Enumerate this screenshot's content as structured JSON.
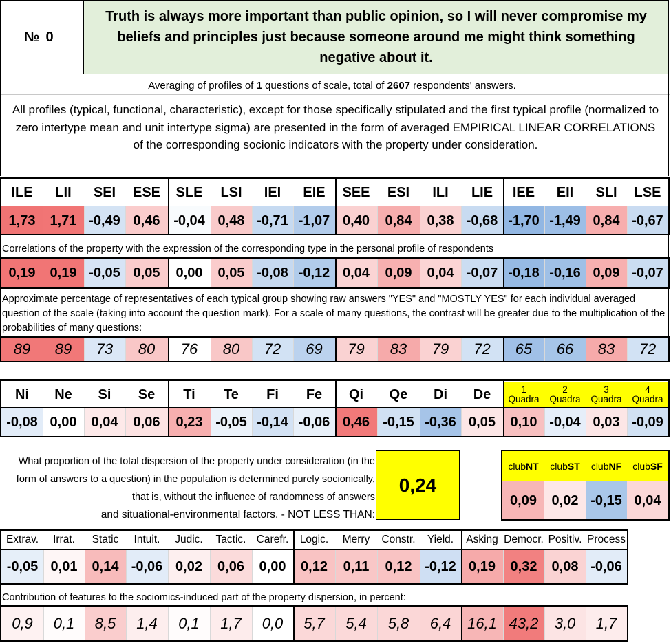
{
  "header": {
    "number_label": "№",
    "number_value": "0",
    "statement": "Truth is always more important than public opinion, so I will never compromise my beliefs and principles just because someone around me might think something negative about it."
  },
  "averaging": {
    "prefix": "Averaging of profiles of ",
    "questions": "1",
    "middle": " questions of scale, total of ",
    "respondents": "2607",
    "suffix": " respondents' answers."
  },
  "intro": "All profiles (typical, functional, characteristic), except for those specifically stipulated and the first typical profile (normalized to zero intertype mean and unit intertype sigma) are presented in the form of averaged EMPIRICAL LINEAR CORRELATIONS of the corresponding socionic indicators with the property under consideration.",
  "types": {
    "headers": [
      "ILE",
      "LII",
      "SEI",
      "ESE",
      "SLE",
      "LSI",
      "IEI",
      "EIE",
      "SEE",
      "ESI",
      "ILI",
      "LIE",
      "IEE",
      "EII",
      "SLI",
      "LSE"
    ],
    "normalized": [
      "1,73",
      "1,71",
      "-0,49",
      "0,46",
      "-0,04",
      "0,48",
      "-0,71",
      "-1,07",
      "0,40",
      "0,84",
      "0,38",
      "-0,68",
      "-1,70",
      "-1,49",
      "0,84",
      "-0,67"
    ],
    "correlations_note": "Correlations of the property with the expression of the corresponding type in the personal profile of respondents",
    "correlations": [
      "0,19",
      "0,19",
      "-0,05",
      "0,05",
      "0,00",
      "0,05",
      "-0,08",
      "-0,12",
      "0,04",
      "0,09",
      "0,04",
      "-0,07",
      "-0,18",
      "-0,16",
      "0,09",
      "-0,07"
    ],
    "percent_note": "Approximate percentage of representatives of each typical group showing raw answers \"YES\" and \"MOSTLY YES\" for each individual averaged question of the scale (taking into account the question mark). For a scale of many questions, the contrast will be greater due to the multiplication of the probabilities of many questions:",
    "percentages": [
      "89",
      "89",
      "73",
      "80",
      "76",
      "80",
      "72",
      "69",
      "79",
      "83",
      "79",
      "72",
      "65",
      "66",
      "83",
      "72"
    ]
  },
  "functions": {
    "headers": [
      "Ni",
      "Ne",
      "Si",
      "Se",
      "Ti",
      "Te",
      "Fi",
      "Fe",
      "Qi",
      "Qe",
      "Di",
      "De"
    ],
    "values": [
      "-0,08",
      "0,00",
      "0,04",
      "0,06",
      "0,23",
      "-0,05",
      "-0,14",
      "-0,06",
      "0,46",
      "-0,15",
      "-0,36",
      "0,05"
    ]
  },
  "quadras": {
    "numbers": [
      "1",
      "2",
      "3",
      "4"
    ],
    "label": "Quadra",
    "values": [
      "0,10",
      "-0,04",
      "0,03",
      "-0,09"
    ]
  },
  "dispersion": {
    "text": "What proportion of the total dispersion of the property under consideration (in the form of answers to a question) in the population is determined purely socionically, that is, without the influence of randomness of answers",
    "text_last": "and situational-environmental factors. - NOT LESS THAN:",
    "value": "0,24"
  },
  "clubs": {
    "prefix": "club",
    "names": [
      "NT",
      "ST",
      "NF",
      "SF"
    ],
    "values": [
      "0,09",
      "0,02",
      "-0,15",
      "0,04"
    ]
  },
  "traits": {
    "headers": [
      "Extrav.",
      "Irrat.",
      "Static",
      "Intuit.",
      "Judic.",
      "Tactic.",
      "Carefr.",
      "Logic.",
      "Merry",
      "Constr.",
      "Yield.",
      "Asking",
      "Democr.",
      "Positiv.",
      "Process"
    ],
    "values": [
      "-0,05",
      "0,01",
      "0,14",
      "-0,06",
      "0,02",
      "0,06",
      "0,00",
      "0,12",
      "0,11",
      "0,12",
      "-0,12",
      "0,19",
      "0,32",
      "0,08",
      "-0,06"
    ],
    "contribution_note": "Contribution of features to the sociomics-induced part of the property dispersion, in percent:",
    "contributions": [
      "0,9",
      "0,1",
      "8,5",
      "1,4",
      "0,1",
      "1,7",
      "0,0",
      "5,7",
      "5,4",
      "5,8",
      "6,4",
      "16,1",
      "43,2",
      "3,0",
      "1,7"
    ]
  },
  "colors": {
    "header_green": "#e2efda",
    "highlight_yellow": "#ffff00",
    "strong_red": "#f07070",
    "strong_blue": "#8db4e2"
  }
}
